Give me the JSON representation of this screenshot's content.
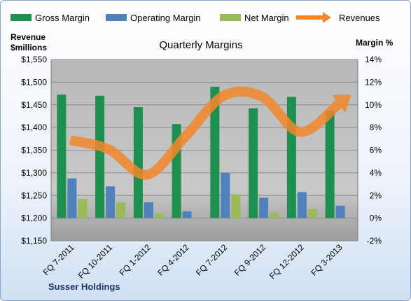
{
  "chart_data": {
    "type": "bar",
    "title": "Quarterly Margins",
    "left_axis_title_line1": "Revenue",
    "left_axis_title_line2": "$millions",
    "right_axis_title": "Margin %",
    "company": "Susser Holdings",
    "categories": [
      "FQ 7-2011",
      "FQ 10-2011",
      "FQ 1-2012",
      "FQ 4-2012",
      "FQ 7-2012",
      "FQ 9-2012",
      "FQ 12-2012",
      "FQ 3-2013"
    ],
    "series": [
      {
        "name": "Gross Margin",
        "axis": "right",
        "color": "#1e8f4e",
        "values": [
          10.9,
          10.8,
          9.8,
          8.3,
          11.6,
          9.7,
          10.7,
          9.5
        ]
      },
      {
        "name": "Operating Margin",
        "axis": "right",
        "color": "#4f81bd",
        "values": [
          3.5,
          2.8,
          1.4,
          0.6,
          4.0,
          1.8,
          2.3,
          1.1
        ]
      },
      {
        "name": "Net Margin",
        "axis": "right",
        "color": "#9bbb59",
        "values": [
          1.7,
          1.4,
          0.4,
          0.0,
          2.1,
          0.5,
          0.8,
          0.0
        ]
      }
    ],
    "line_series": {
      "name": "Revenues",
      "axis": "left",
      "color": "#f0872d",
      "values": [
        1372,
        1352,
        1296,
        1380,
        1470,
        1468,
        1390,
        1452
      ]
    },
    "left_ylim": [
      1150,
      1550
    ],
    "left_ticks": [
      "$1,150",
      "$1,200",
      "$1,250",
      "$1,300",
      "$1,350",
      "$1,400",
      "$1,450",
      "$1,500",
      "$1,550"
    ],
    "right_ylim": [
      -2,
      14
    ],
    "right_ticks": [
      "-2%",
      "0%",
      "2%",
      "4%",
      "6%",
      "8%",
      "10%",
      "12%",
      "14%"
    ],
    "grid": true,
    "legend_position": "top"
  }
}
